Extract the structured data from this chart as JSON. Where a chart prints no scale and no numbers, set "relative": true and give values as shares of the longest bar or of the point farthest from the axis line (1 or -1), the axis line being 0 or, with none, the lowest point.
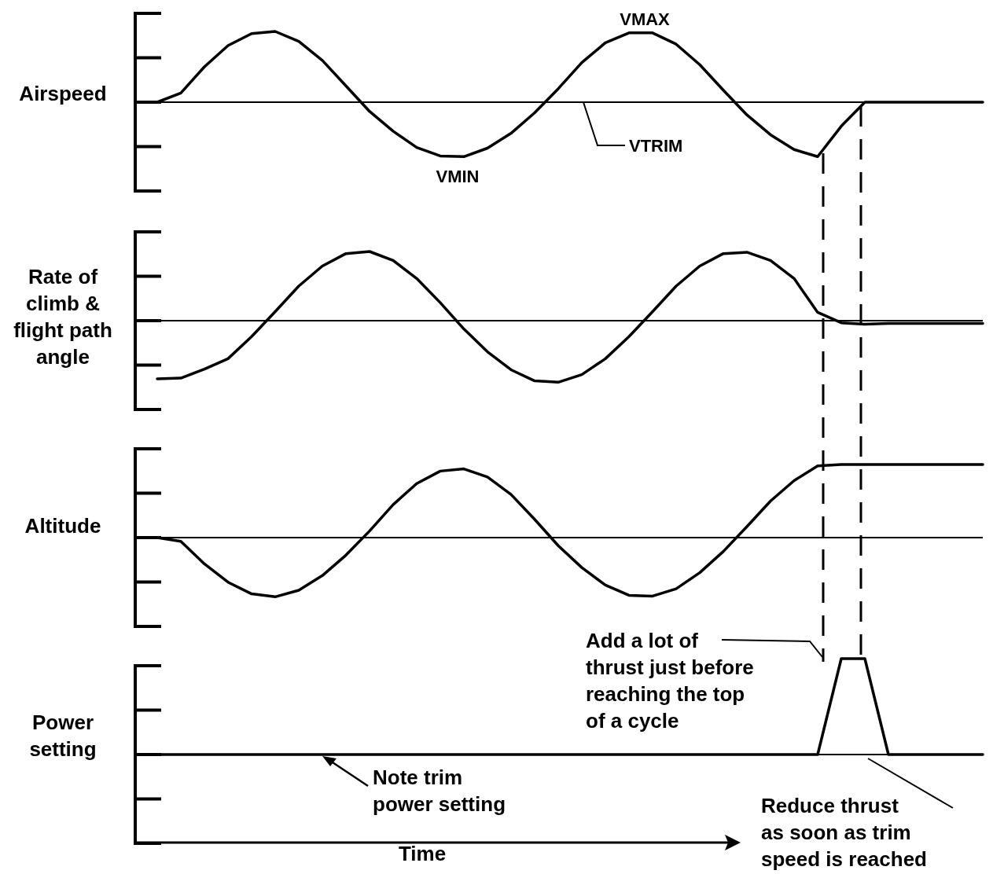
{
  "chart_data": [
    {
      "type": "line",
      "ylabel": "Airspeed",
      "relative": true,
      "categories": [
        null,
        null,
        null,
        null,
        null,
        null,
        null,
        null,
        null,
        null,
        null,
        null,
        null,
        null,
        null,
        null,
        null,
        null,
        null,
        null,
        null,
        null,
        null,
        null,
        null,
        null,
        null,
        null,
        null,
        null,
        null,
        null,
        null,
        null,
        null,
        null
      ],
      "series": [
        {
          "color": "#000000",
          "values": [
            0,
            0.13,
            0.5,
            0.8,
            0.97,
            1,
            0.86,
            0.59,
            0.23,
            -0.13,
            -0.41,
            -0.64,
            -0.76,
            -0.77,
            -0.65,
            -0.44,
            -0.15,
            0.19,
            0.56,
            0.84,
            0.98,
            0.98,
            0.82,
            0.53,
            0.17,
            -0.18,
            -0.46,
            -0.67,
            -0.77,
            -0.34,
            0,
            0,
            0,
            0,
            0,
            0
          ]
        }
      ],
      "ref_lines": [
        {
          "axis": "y",
          "value": 0,
          "label": "VTRIM"
        }
      ],
      "annotations": [
        "VMAX",
        "VMIN"
      ]
    },
    {
      "type": "line",
      "ylabel": "Rate of\nclimb &\nflight path\nangle",
      "relative": true,
      "categories": [
        null,
        null,
        null,
        null,
        null,
        null,
        null,
        null,
        null,
        null,
        null,
        null,
        null,
        null,
        null,
        null,
        null,
        null,
        null,
        null,
        null,
        null,
        null,
        null,
        null,
        null,
        null,
        null,
        null,
        null,
        null,
        null,
        null,
        null,
        null,
        null
      ],
      "series": [
        {
          "color": "#000000",
          "values": [
            -0.84,
            -0.83,
            -0.7,
            -0.55,
            -0.23,
            0.13,
            0.5,
            0.79,
            0.97,
            1,
            0.87,
            0.61,
            0.26,
            -0.12,
            -0.45,
            -0.71,
            -0.87,
            -0.89,
            -0.78,
            -0.55,
            -0.23,
            0.13,
            0.5,
            0.79,
            0.97,
            0.99,
            0.87,
            0.61,
            0.12,
            -0.03,
            -0.05,
            -0.04,
            -0.04,
            -0.04,
            -0.04,
            -0.04
          ]
        }
      ],
      "ref_lines": [
        {
          "axis": "y",
          "value": 0
        }
      ]
    },
    {
      "type": "line",
      "ylabel": "Altitude",
      "relative": true,
      "categories": [
        null,
        null,
        null,
        null,
        null,
        null,
        null,
        null,
        null,
        null,
        null,
        null,
        null,
        null,
        null,
        null,
        null,
        null,
        null,
        null,
        null,
        null,
        null,
        null,
        null,
        null,
        null,
        null,
        null,
        null,
        null,
        null,
        null,
        null,
        null,
        null
      ],
      "series": [
        {
          "color": "#000000",
          "values": [
            0,
            -0.05,
            -0.36,
            -0.61,
            -0.77,
            -0.81,
            -0.72,
            -0.52,
            -0.24,
            0.09,
            0.45,
            0.74,
            0.91,
            0.94,
            0.83,
            0.59,
            0.25,
            -0.11,
            -0.41,
            -0.65,
            -0.79,
            -0.8,
            -0.7,
            -0.48,
            -0.19,
            0.15,
            0.5,
            0.78,
            0.98,
            1,
            1,
            1,
            1,
            1,
            1,
            1
          ]
        }
      ],
      "ref_lines": [
        {
          "axis": "y",
          "value": 0
        }
      ]
    },
    {
      "type": "line",
      "ylabel": "Power\nsetting",
      "xlabel": "Time",
      "relative": true,
      "categories": [
        null,
        null,
        null,
        null,
        null,
        null,
        null,
        null,
        null,
        null,
        null,
        null,
        null,
        null,
        null,
        null,
        null,
        null,
        null,
        null,
        null,
        null,
        null,
        null,
        null,
        null,
        null,
        null,
        null,
        null,
        null,
        null,
        null,
        null,
        null,
        null
      ],
      "series": [
        {
          "color": "#000000",
          "values": [
            0,
            0,
            0,
            0,
            0,
            0,
            0,
            0,
            0,
            0,
            0,
            0,
            0,
            0,
            0,
            0,
            0,
            0,
            0,
            0,
            0,
            0,
            0,
            0,
            0,
            0,
            0,
            0,
            0,
            1,
            1,
            0,
            0,
            0,
            0,
            0
          ]
        }
      ],
      "ref_lines": [
        {
          "axis": "y",
          "value": 0,
          "label": "Note trim\npower setting"
        }
      ],
      "annotations": [
        "Add a lot of\nthrust just before\nreaching the top\nof a cycle",
        "Reduce thrust\nas soon as trim\nspeed is reached"
      ]
    }
  ]
}
